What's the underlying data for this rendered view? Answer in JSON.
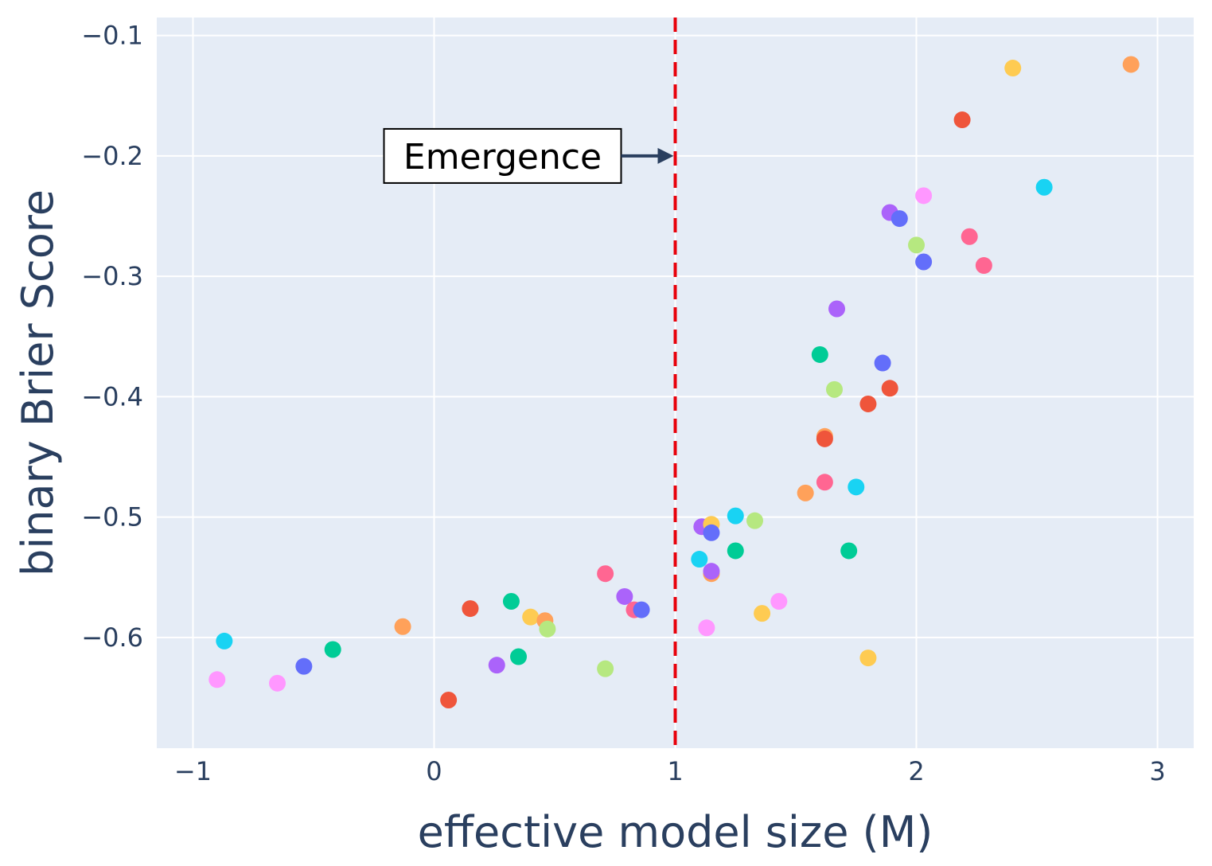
{
  "chart_data": {
    "type": "scatter",
    "title": "",
    "xlabel": "effective model size (M)",
    "ylabel": "binary Brier Score",
    "xlim": [
      -1.15,
      3.15
    ],
    "ylim": [
      -0.692,
      -0.085
    ],
    "x_ticks": [
      -1,
      0,
      1,
      2,
      3
    ],
    "x_tick_labels": [
      "−1",
      "0",
      "1",
      "2",
      "3"
    ],
    "y_ticks": [
      -0.1,
      -0.2,
      -0.3,
      -0.4,
      -0.5,
      -0.6
    ],
    "y_tick_labels": [
      "−0.1",
      "−0.2",
      "−0.3",
      "−0.4",
      "−0.5",
      "−0.6"
    ],
    "grid": true,
    "vline": {
      "x": 1,
      "color": "#e8000b",
      "style": "dashed"
    },
    "annotation": {
      "text": "Emergence",
      "x": 1,
      "y": -0.2,
      "arrow": true
    },
    "colors": {
      "background": "#e5ecf6",
      "grid": "#ffffff",
      "axis_text": "#2a3f5f",
      "arrow": "#2a3f5f"
    },
    "points": [
      {
        "x": -0.9,
        "y": -0.635,
        "color": "#FF97FF"
      },
      {
        "x": -0.87,
        "y": -0.603,
        "color": "#19D3F3"
      },
      {
        "x": -0.65,
        "y": -0.638,
        "color": "#FF97FF"
      },
      {
        "x": -0.54,
        "y": -0.624,
        "color": "#636EFA"
      },
      {
        "x": -0.42,
        "y": -0.61,
        "color": "#00CC96"
      },
      {
        "x": -0.13,
        "y": -0.591,
        "color": "#FFA15A"
      },
      {
        "x": 0.06,
        "y": -0.652,
        "color": "#EF553B"
      },
      {
        "x": 0.15,
        "y": -0.576,
        "color": "#EF553B"
      },
      {
        "x": 0.26,
        "y": -0.623,
        "color": "#AB63FA"
      },
      {
        "x": 0.32,
        "y": -0.57,
        "color": "#00CC96"
      },
      {
        "x": 0.35,
        "y": -0.616,
        "color": "#00CC96"
      },
      {
        "x": 0.4,
        "y": -0.583,
        "color": "#FECB52"
      },
      {
        "x": 0.46,
        "y": -0.586,
        "color": "#FFA15A"
      },
      {
        "x": 0.47,
        "y": -0.593,
        "color": "#B6E880"
      },
      {
        "x": 0.71,
        "y": -0.547,
        "color": "#FF6692"
      },
      {
        "x": 0.71,
        "y": -0.626,
        "color": "#B6E880"
      },
      {
        "x": 0.79,
        "y": -0.566,
        "color": "#AB63FA"
      },
      {
        "x": 0.83,
        "y": -0.577,
        "color": "#FF6692"
      },
      {
        "x": 0.86,
        "y": -0.577,
        "color": "#636EFA"
      },
      {
        "x": 1.1,
        "y": -0.535,
        "color": "#19D3F3"
      },
      {
        "x": 1.11,
        "y": -0.508,
        "color": "#AB63FA"
      },
      {
        "x": 1.13,
        "y": -0.592,
        "color": "#FF97FF"
      },
      {
        "x": 1.15,
        "y": -0.506,
        "color": "#FECB52"
      },
      {
        "x": 1.15,
        "y": -0.513,
        "color": "#636EFA"
      },
      {
        "x": 1.15,
        "y": -0.547,
        "color": "#FFA15A"
      },
      {
        "x": 1.15,
        "y": -0.545,
        "color": "#AB63FA"
      },
      {
        "x": 1.25,
        "y": -0.499,
        "color": "#19D3F3"
      },
      {
        "x": 1.25,
        "y": -0.528,
        "color": "#00CC96"
      },
      {
        "x": 1.33,
        "y": -0.503,
        "color": "#B6E880"
      },
      {
        "x": 1.36,
        "y": -0.58,
        "color": "#FECB52"
      },
      {
        "x": 1.43,
        "y": -0.57,
        "color": "#FF97FF"
      },
      {
        "x": 1.54,
        "y": -0.48,
        "color": "#FFA15A"
      },
      {
        "x": 1.6,
        "y": -0.365,
        "color": "#00CC96"
      },
      {
        "x": 1.62,
        "y": -0.433,
        "color": "#FFA15A"
      },
      {
        "x": 1.62,
        "y": -0.435,
        "color": "#EF553B"
      },
      {
        "x": 1.62,
        "y": -0.471,
        "color": "#FF6692"
      },
      {
        "x": 1.66,
        "y": -0.394,
        "color": "#B6E880"
      },
      {
        "x": 1.67,
        "y": -0.327,
        "color": "#AB63FA"
      },
      {
        "x": 1.72,
        "y": -0.528,
        "color": "#00CC96"
      },
      {
        "x": 1.75,
        "y": -0.475,
        "color": "#19D3F3"
      },
      {
        "x": 1.8,
        "y": -0.406,
        "color": "#EF553B"
      },
      {
        "x": 1.8,
        "y": -0.617,
        "color": "#FECB52"
      },
      {
        "x": 1.86,
        "y": -0.372,
        "color": "#636EFA"
      },
      {
        "x": 1.89,
        "y": -0.393,
        "color": "#EF553B"
      },
      {
        "x": 1.89,
        "y": -0.247,
        "color": "#AB63FA"
      },
      {
        "x": 1.93,
        "y": -0.252,
        "color": "#636EFA"
      },
      {
        "x": 2.0,
        "y": -0.274,
        "color": "#B6E880"
      },
      {
        "x": 2.03,
        "y": -0.233,
        "color": "#FF97FF"
      },
      {
        "x": 2.03,
        "y": -0.288,
        "color": "#636EFA"
      },
      {
        "x": 2.19,
        "y": -0.17,
        "color": "#EF553B"
      },
      {
        "x": 2.22,
        "y": -0.267,
        "color": "#FF6692"
      },
      {
        "x": 2.28,
        "y": -0.291,
        "color": "#FF6692"
      },
      {
        "x": 2.4,
        "y": -0.127,
        "color": "#FECB52"
      },
      {
        "x": 2.53,
        "y": -0.226,
        "color": "#19D3F3"
      },
      {
        "x": 2.89,
        "y": -0.124,
        "color": "#FFA15A"
      }
    ]
  }
}
